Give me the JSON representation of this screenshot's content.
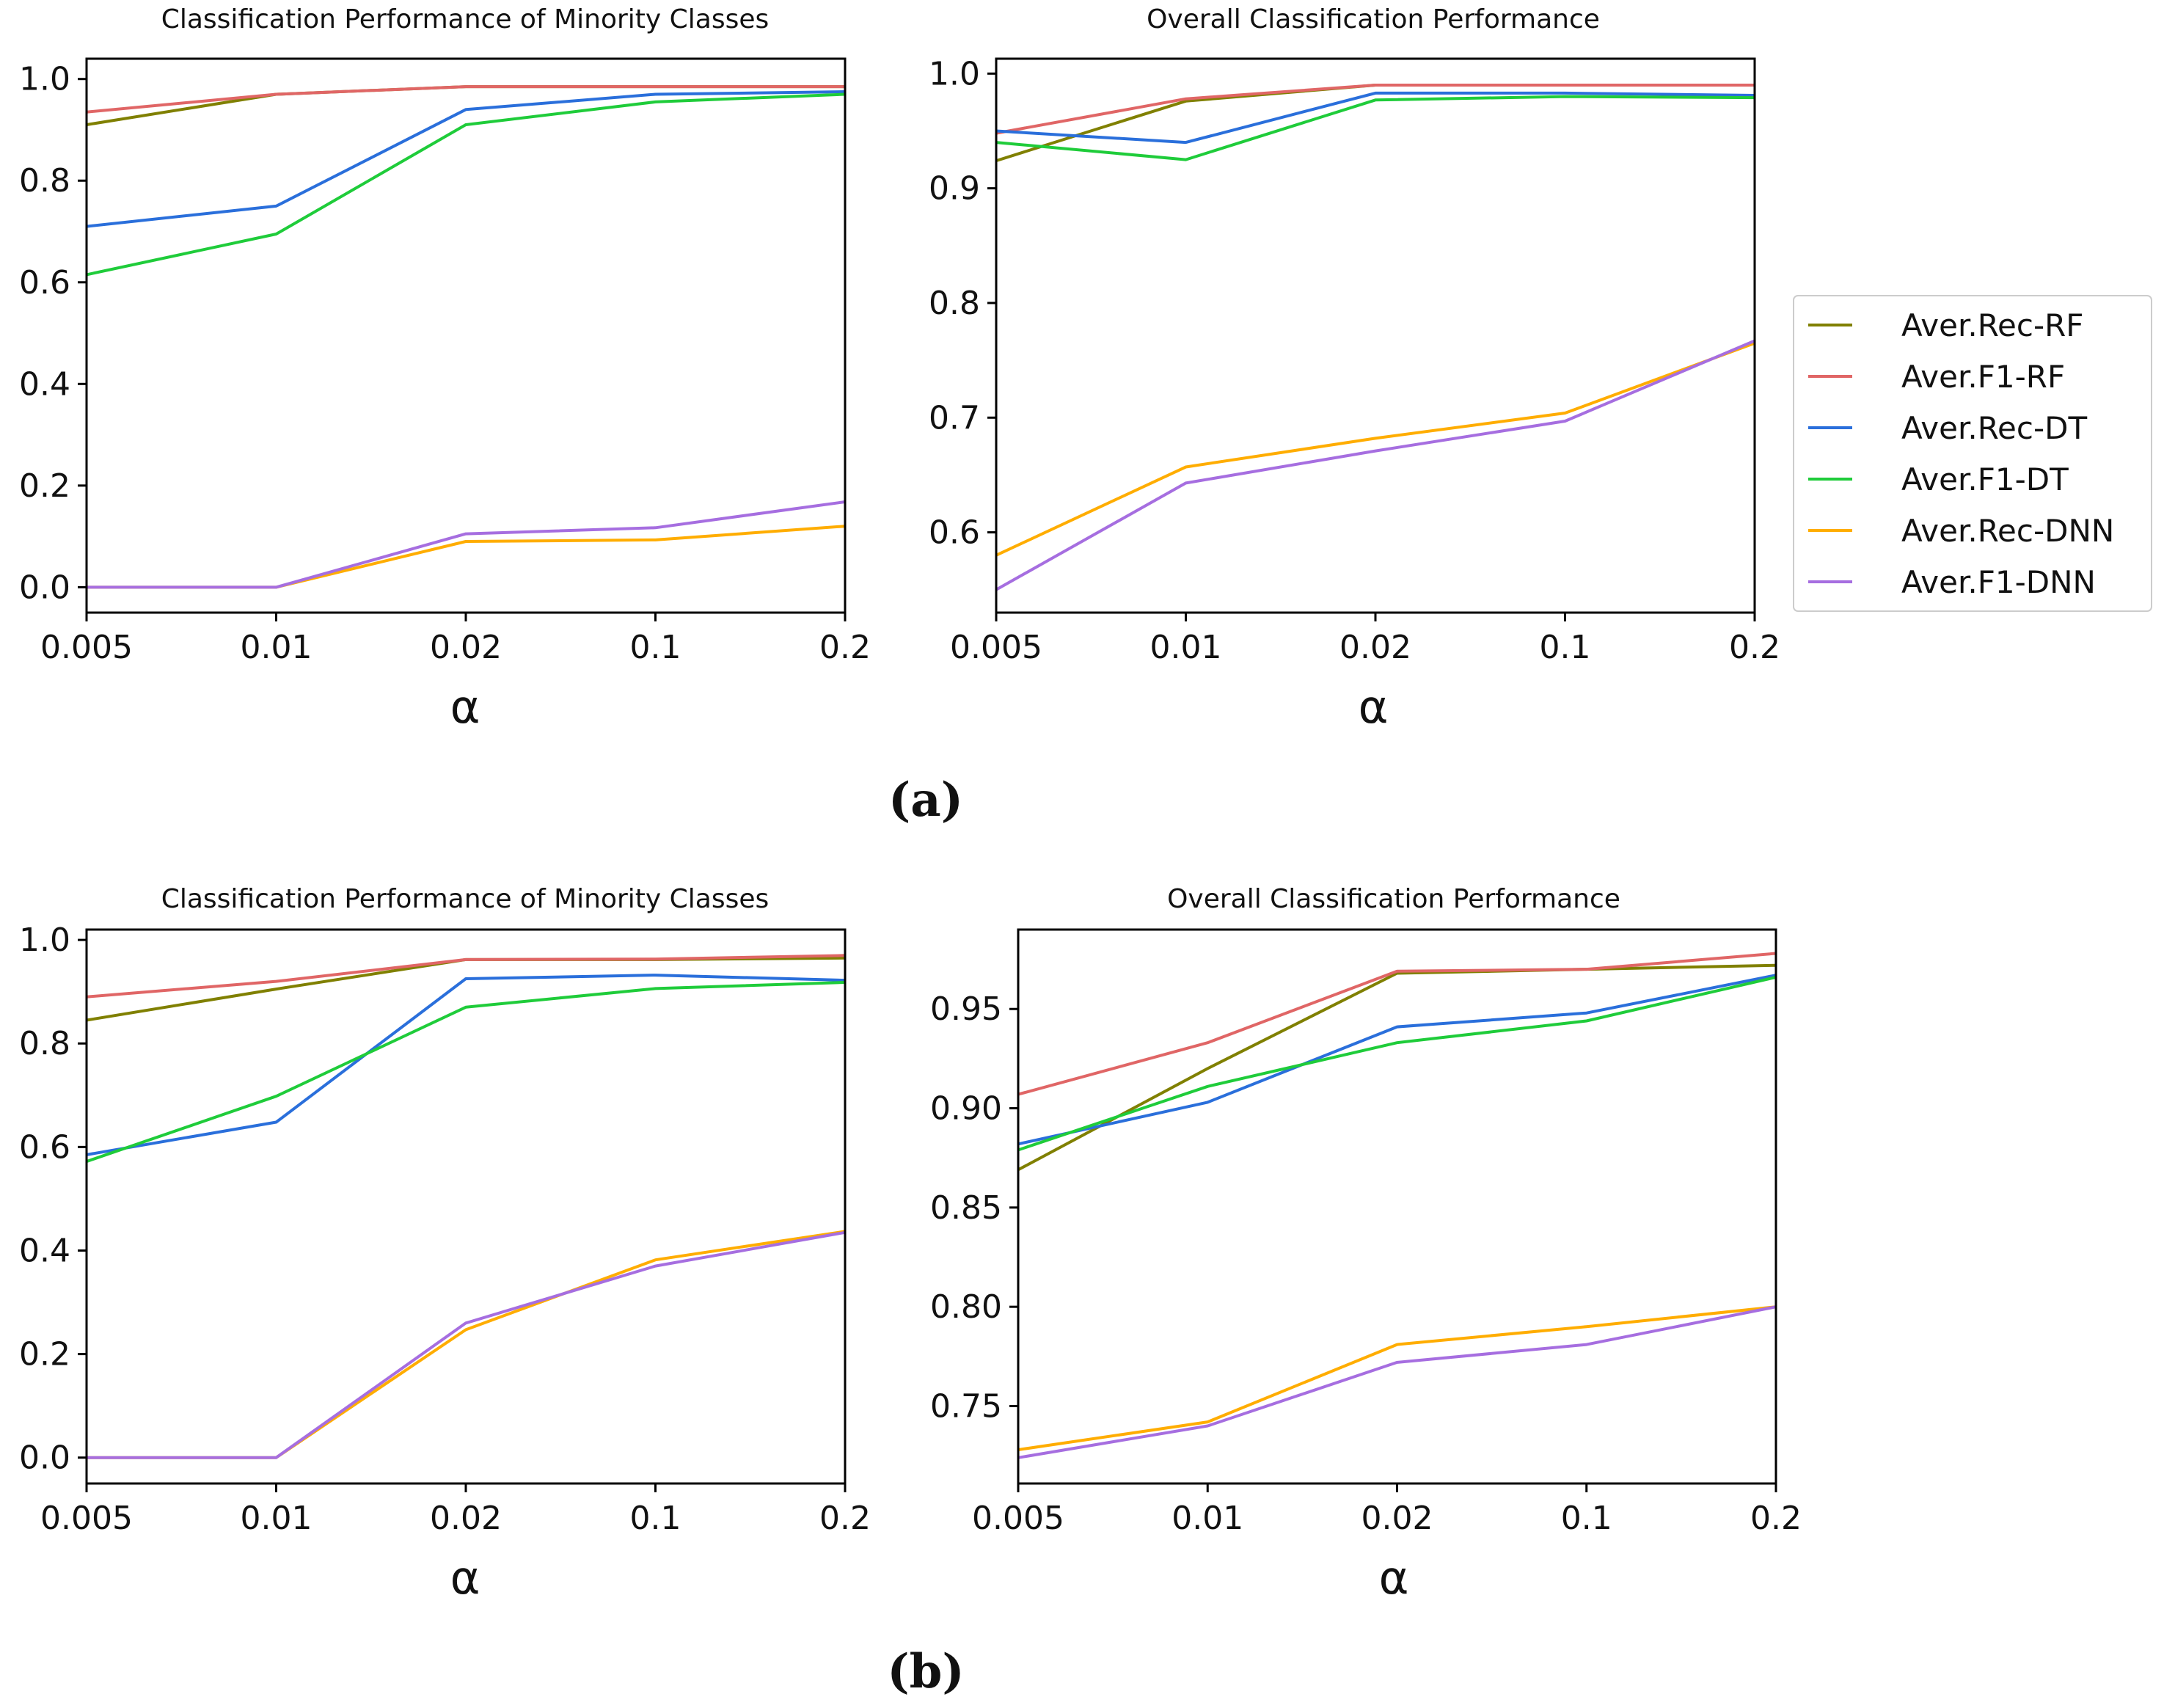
{
  "figure": {
    "panel_labels": [
      "(a)",
      "(b)"
    ]
  },
  "legend": {
    "entries": [
      {
        "name": "Aver.Rec-RF",
        "color": "#808000"
      },
      {
        "name": "Aver.F1-RF",
        "color": "#e06666"
      },
      {
        "name": "Aver.Rec-DT",
        "color": "#2a6fdb"
      },
      {
        "name": "Aver.F1-DT",
        "color": "#1fcc3a"
      },
      {
        "name": "Aver.Rec-DNN",
        "color": "#ffad00"
      },
      {
        "name": "Aver.F1-DNN",
        "color": "#a66ee0"
      }
    ]
  },
  "chart_data": [
    {
      "type": "line",
      "panel": "(a)",
      "title": "Classification Performance of Minority Classes",
      "xlabel": "α",
      "ylabel": "",
      "categories": [
        "0.005",
        "0.01",
        "0.02",
        "0.1",
        "0.2"
      ],
      "ylim": [
        -0.05,
        1.04
      ],
      "yticks": [
        0.0,
        0.2,
        0.4,
        0.6,
        0.8,
        1.0
      ],
      "ytick_labels": [
        "0.0",
        "0.2",
        "0.4",
        "0.6",
        "0.8",
        "1.0"
      ],
      "series": [
        {
          "name": "Aver.Rec-RF",
          "values": [
            0.91,
            0.97,
            0.985,
            0.985,
            0.985
          ]
        },
        {
          "name": "Aver.F1-RF",
          "values": [
            0.935,
            0.97,
            0.985,
            0.985,
            0.985
          ]
        },
        {
          "name": "Aver.Rec-DT",
          "values": [
            0.71,
            0.75,
            0.94,
            0.97,
            0.975
          ]
        },
        {
          "name": "Aver.F1-DT",
          "values": [
            0.615,
            0.695,
            0.91,
            0.955,
            0.97
          ]
        },
        {
          "name": "Aver.Rec-DNN",
          "values": [
            0.0,
            0.0,
            0.09,
            0.093,
            0.12
          ]
        },
        {
          "name": "Aver.F1-DNN",
          "values": [
            0.0,
            0.0,
            0.105,
            0.117,
            0.168
          ]
        }
      ]
    },
    {
      "type": "line",
      "panel": "(a)",
      "title": "Overall Classification Performance",
      "xlabel": "α",
      "ylabel": "",
      "categories": [
        "0.005",
        "0.01",
        "0.02",
        "0.1",
        "0.2"
      ],
      "ylim": [
        0.53,
        1.013
      ],
      "yticks": [
        0.6,
        0.7,
        0.8,
        0.9,
        1.0
      ],
      "ytick_labels": [
        "0.6",
        "0.7",
        "0.8",
        "0.9",
        "1.0"
      ],
      "series": [
        {
          "name": "Aver.Rec-RF",
          "values": [
            0.924,
            0.976,
            0.99,
            0.99,
            0.99
          ]
        },
        {
          "name": "Aver.F1-RF",
          "values": [
            0.948,
            0.978,
            0.99,
            0.99,
            0.99
          ]
        },
        {
          "name": "Aver.Rec-DT",
          "values": [
            0.95,
            0.94,
            0.983,
            0.983,
            0.981
          ]
        },
        {
          "name": "Aver.F1-DT",
          "values": [
            0.94,
            0.925,
            0.977,
            0.98,
            0.979
          ]
        },
        {
          "name": "Aver.Rec-DNN",
          "values": [
            0.58,
            0.657,
            0.682,
            0.704,
            0.765
          ]
        },
        {
          "name": "Aver.F1-DNN",
          "values": [
            0.55,
            0.643,
            0.671,
            0.697,
            0.767
          ]
        }
      ]
    },
    {
      "type": "line",
      "panel": "(b)",
      "title": "Classification Performance of Minority Classes",
      "xlabel": "α",
      "ylabel": "",
      "categories": [
        "0.005",
        "0.01",
        "0.02",
        "0.1",
        "0.2"
      ],
      "ylim": [
        -0.05,
        1.02
      ],
      "yticks": [
        0.0,
        0.2,
        0.4,
        0.6,
        0.8,
        1.0
      ],
      "ytick_labels": [
        "0.0",
        "0.2",
        "0.4",
        "0.6",
        "0.8",
        "1.0"
      ],
      "series": [
        {
          "name": "Aver.Rec-RF",
          "values": [
            0.845,
            0.905,
            0.962,
            0.962,
            0.965
          ]
        },
        {
          "name": "Aver.F1-RF",
          "values": [
            0.89,
            0.92,
            0.962,
            0.963,
            0.97
          ]
        },
        {
          "name": "Aver.Rec-DT",
          "values": [
            0.585,
            0.648,
            0.925,
            0.932,
            0.922
          ]
        },
        {
          "name": "Aver.F1-DT",
          "values": [
            0.572,
            0.698,
            0.87,
            0.906,
            0.918
          ]
        },
        {
          "name": "Aver.Rec-DNN",
          "values": [
            0.0,
            0.0,
            0.247,
            0.382,
            0.437
          ]
        },
        {
          "name": "Aver.F1-DNN",
          "values": [
            0.0,
            0.0,
            0.26,
            0.37,
            0.435
          ]
        }
      ]
    },
    {
      "type": "line",
      "panel": "(b)",
      "title": "Overall Classification Performance",
      "xlabel": "α",
      "ylabel": "",
      "categories": [
        "0.005",
        "0.01",
        "0.02",
        "0.1",
        "0.2"
      ],
      "ylim": [
        0.711,
        0.99
      ],
      "yticks": [
        0.75,
        0.8,
        0.85,
        0.9,
        0.95
      ],
      "ytick_labels": [
        "0.75",
        "0.80",
        "0.85",
        "0.90",
        "0.95"
      ],
      "series": [
        {
          "name": "Aver.Rec-RF",
          "values": [
            0.869,
            0.92,
            0.968,
            0.97,
            0.972
          ]
        },
        {
          "name": "Aver.F1-RF",
          "values": [
            0.907,
            0.933,
            0.969,
            0.97,
            0.978
          ]
        },
        {
          "name": "Aver.Rec-DT",
          "values": [
            0.882,
            0.903,
            0.941,
            0.948,
            0.967
          ]
        },
        {
          "name": "Aver.F1-DT",
          "values": [
            0.879,
            0.911,
            0.933,
            0.944,
            0.966
          ]
        },
        {
          "name": "Aver.Rec-DNN",
          "values": [
            0.728,
            0.742,
            0.781,
            0.79,
            0.8
          ]
        },
        {
          "name": "Aver.F1-DNN",
          "values": [
            0.724,
            0.74,
            0.772,
            0.781,
            0.8
          ]
        }
      ]
    }
  ]
}
